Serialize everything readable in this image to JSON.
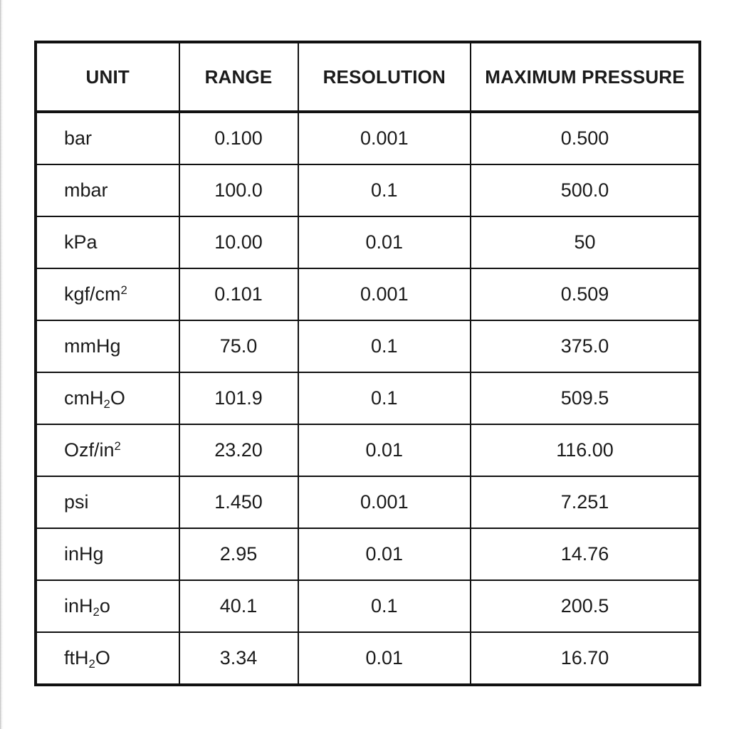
{
  "table": {
    "headers": [
      "UNIT",
      "RANGE",
      "RESOLUTION",
      "MAXIMUM PRESSURE"
    ],
    "rows": [
      {
        "unit": "bar",
        "range": "0.100",
        "resolution": "0.001",
        "max_pressure": "0.500"
      },
      {
        "unit": "mbar",
        "range": "100.0",
        "resolution": "0.1",
        "max_pressure": "500.0"
      },
      {
        "unit": "kPa",
        "range": "10.00",
        "resolution": "0.01",
        "max_pressure": "50"
      },
      {
        "unit": "kgf/cm²",
        "range": "0.101",
        "resolution": "0.001",
        "max_pressure": "0.509"
      },
      {
        "unit": "mmHg",
        "range": "75.0",
        "resolution": "0.1",
        "max_pressure": "375.0"
      },
      {
        "unit": "cmH₂O",
        "range": "101.9",
        "resolution": "0.1",
        "max_pressure": "509.5"
      },
      {
        "unit": "Ozf/in²",
        "range": "23.20",
        "resolution": "0.01",
        "max_pressure": "116.00"
      },
      {
        "unit": "psi",
        "range": "1.450",
        "resolution": "0.001",
        "max_pressure": "7.251"
      },
      {
        "unit": "inHg",
        "range": "2.95",
        "resolution": "0.01",
        "max_pressure": "14.76"
      },
      {
        "unit": "inH₂o",
        "range": "40.1",
        "resolution": "0.1",
        "max_pressure": "200.5"
      },
      {
        "unit": "ftH₂O",
        "range": "3.34",
        "resolution": "0.01",
        "max_pressure": "16.70"
      }
    ],
    "colors": {
      "border": "#111111",
      "text": "#1b1b1b",
      "background": "#ffffff"
    }
  }
}
